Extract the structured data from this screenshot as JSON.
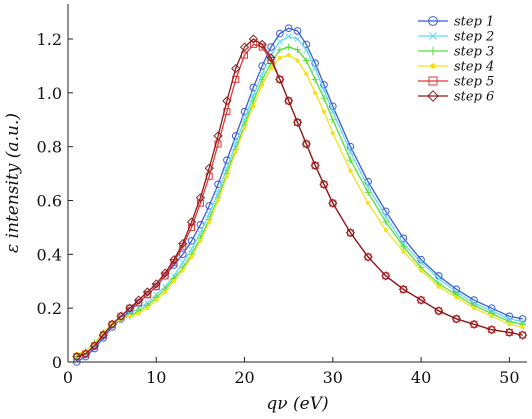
{
  "chart_data": {
    "type": "line",
    "xlabel": "qν (eV)",
    "ylabel": "ε intensity (a.u.)",
    "xlim": [
      0,
      52
    ],
    "ylim": [
      0,
      1.33
    ],
    "xticks": [
      0,
      10,
      20,
      30,
      40,
      50
    ],
    "yticks": [
      0,
      0.2,
      0.4,
      0.6,
      0.8,
      1.0,
      1.2
    ],
    "xtick_labels": [
      "0",
      "10",
      "20",
      "30",
      "40",
      "50"
    ],
    "ytick_labels": [
      "0",
      "0.2",
      "0.4",
      "0.6",
      "0.8",
      "1.0",
      "1.2"
    ],
    "grid": false,
    "legend_position": "top-right",
    "series": [
      {
        "name": "step 1",
        "color": "#3a5bd9",
        "marker": "circle",
        "x": [
          1,
          2,
          3,
          4,
          5,
          6,
          7,
          8,
          9,
          10,
          11,
          12,
          13,
          14,
          15,
          16,
          17,
          18,
          19,
          20,
          21,
          22,
          23,
          24,
          25,
          26,
          27,
          28,
          29,
          30,
          32,
          34,
          36,
          38,
          40,
          42,
          44,
          46,
          48,
          50,
          51.5
        ],
        "y": [
          0.0,
          0.02,
          0.05,
          0.09,
          0.13,
          0.16,
          0.19,
          0.22,
          0.25,
          0.28,
          0.32,
          0.36,
          0.4,
          0.45,
          0.51,
          0.58,
          0.66,
          0.75,
          0.84,
          0.93,
          1.02,
          1.1,
          1.17,
          1.22,
          1.24,
          1.23,
          1.18,
          1.11,
          1.03,
          0.95,
          0.8,
          0.67,
          0.56,
          0.46,
          0.38,
          0.32,
          0.27,
          0.23,
          0.2,
          0.17,
          0.16
        ]
      },
      {
        "name": "step 2",
        "color": "#66d9f2",
        "marker": "x",
        "x": [
          1,
          2,
          3,
          4,
          5,
          6,
          7,
          8,
          9,
          10,
          11,
          12,
          13,
          14,
          15,
          16,
          17,
          18,
          19,
          20,
          21,
          22,
          23,
          24,
          25,
          26,
          27,
          28,
          29,
          30,
          32,
          34,
          36,
          38,
          40,
          42,
          44,
          46,
          48,
          50,
          51.5
        ],
        "y": [
          0.01,
          0.03,
          0.06,
          0.1,
          0.14,
          0.16,
          0.18,
          0.2,
          0.22,
          0.25,
          0.28,
          0.32,
          0.37,
          0.42,
          0.48,
          0.55,
          0.63,
          0.72,
          0.81,
          0.9,
          0.99,
          1.07,
          1.14,
          1.19,
          1.21,
          1.2,
          1.16,
          1.09,
          1.01,
          0.93,
          0.78,
          0.65,
          0.54,
          0.44,
          0.37,
          0.31,
          0.26,
          0.22,
          0.19,
          0.16,
          0.15
        ]
      },
      {
        "name": "step 3",
        "color": "#55e03a",
        "marker": "plus",
        "x": [
          1,
          2,
          3,
          4,
          5,
          6,
          7,
          8,
          9,
          10,
          11,
          12,
          13,
          14,
          15,
          16,
          17,
          18,
          19,
          20,
          21,
          22,
          23,
          24,
          25,
          26,
          27,
          28,
          29,
          30,
          32,
          34,
          36,
          38,
          40,
          42,
          44,
          46,
          48,
          50,
          51.5
        ],
        "y": [
          0.02,
          0.04,
          0.07,
          0.11,
          0.14,
          0.16,
          0.17,
          0.19,
          0.21,
          0.24,
          0.27,
          0.31,
          0.35,
          0.4,
          0.46,
          0.53,
          0.61,
          0.7,
          0.79,
          0.88,
          0.97,
          1.05,
          1.11,
          1.16,
          1.17,
          1.16,
          1.12,
          1.05,
          0.98,
          0.9,
          0.75,
          0.63,
          0.52,
          0.43,
          0.35,
          0.29,
          0.25,
          0.21,
          0.18,
          0.15,
          0.14
        ]
      },
      {
        "name": "step 4",
        "color": "#f2e21a",
        "marker": "dot",
        "x": [
          1,
          2,
          3,
          4,
          5,
          6,
          7,
          8,
          9,
          10,
          11,
          12,
          13,
          14,
          15,
          16,
          17,
          18,
          19,
          20,
          21,
          22,
          23,
          24,
          25,
          26,
          27,
          28,
          29,
          30,
          32,
          34,
          36,
          38,
          40,
          42,
          44,
          46,
          48,
          50,
          51.5
        ],
        "y": [
          0.03,
          0.04,
          0.07,
          0.11,
          0.14,
          0.16,
          0.17,
          0.18,
          0.2,
          0.23,
          0.26,
          0.3,
          0.34,
          0.39,
          0.45,
          0.52,
          0.6,
          0.69,
          0.78,
          0.87,
          0.95,
          1.03,
          1.09,
          1.13,
          1.14,
          1.12,
          1.07,
          1.0,
          0.93,
          0.85,
          0.71,
          0.59,
          0.49,
          0.41,
          0.34,
          0.28,
          0.24,
          0.2,
          0.17,
          0.14,
          0.13
        ]
      },
      {
        "name": "step 5",
        "color": "#e0383a",
        "marker": "square",
        "x": [
          1,
          2,
          3,
          4,
          5,
          6,
          7,
          8,
          9,
          10,
          11,
          12,
          13,
          14,
          15,
          16,
          17,
          18,
          19,
          20,
          21,
          22,
          23,
          24,
          25,
          26,
          27,
          28,
          29,
          30,
          32,
          34,
          36,
          38,
          40,
          42,
          44,
          46,
          48,
          50,
          51.5
        ],
        "y": [
          0.02,
          0.03,
          0.06,
          0.1,
          0.14,
          0.17,
          0.2,
          0.22,
          0.25,
          0.28,
          0.32,
          0.37,
          0.43,
          0.5,
          0.59,
          0.69,
          0.81,
          0.93,
          1.05,
          1.14,
          1.18,
          1.17,
          1.12,
          1.05,
          0.97,
          0.89,
          0.81,
          0.73,
          0.66,
          0.59,
          0.48,
          0.39,
          0.32,
          0.27,
          0.23,
          0.19,
          0.16,
          0.14,
          0.12,
          0.11,
          0.1
        ]
      },
      {
        "name": "step 6",
        "color": "#8a1c1c",
        "marker": "diamond",
        "x": [
          1,
          2,
          3,
          4,
          5,
          6,
          7,
          8,
          9,
          10,
          11,
          12,
          13,
          14,
          15,
          16,
          17,
          18,
          19,
          20,
          21,
          22,
          23,
          24,
          25,
          26,
          27,
          28,
          29,
          30,
          32,
          34,
          36,
          38,
          40,
          42,
          44,
          46,
          48,
          50,
          51.5
        ],
        "y": [
          0.02,
          0.03,
          0.06,
          0.1,
          0.14,
          0.17,
          0.2,
          0.23,
          0.26,
          0.29,
          0.33,
          0.38,
          0.44,
          0.52,
          0.61,
          0.72,
          0.84,
          0.97,
          1.09,
          1.17,
          1.2,
          1.18,
          1.13,
          1.05,
          0.97,
          0.89,
          0.81,
          0.73,
          0.66,
          0.59,
          0.48,
          0.39,
          0.32,
          0.27,
          0.23,
          0.19,
          0.16,
          0.14,
          0.12,
          0.11,
          0.1
        ]
      }
    ]
  }
}
